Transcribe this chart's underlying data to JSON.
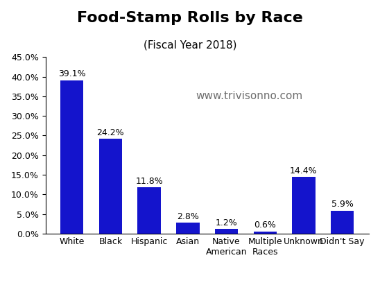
{
  "title": "Food-Stamp Rolls by Race",
  "subtitle": "(Fiscal Year 2018)",
  "watermark": "www.trivisonno.com",
  "categories": [
    "White",
    "Black",
    "Hispanic",
    "Asian",
    "Native\nAmerican",
    "Multiple\nRaces",
    "Unknown",
    "Didn't Say"
  ],
  "values": [
    39.1,
    24.2,
    11.8,
    2.8,
    1.2,
    0.6,
    14.4,
    5.9
  ],
  "bar_color": "#1414CC",
  "ylim": [
    0,
    45
  ],
  "yticks": [
    0,
    5,
    10,
    15,
    20,
    25,
    30,
    35,
    40,
    45
  ],
  "title_fontsize": 16,
  "subtitle_fontsize": 11,
  "label_fontsize": 9,
  "tick_fontsize": 9,
  "watermark_fontsize": 11,
  "background_color": "#FFFFFF"
}
